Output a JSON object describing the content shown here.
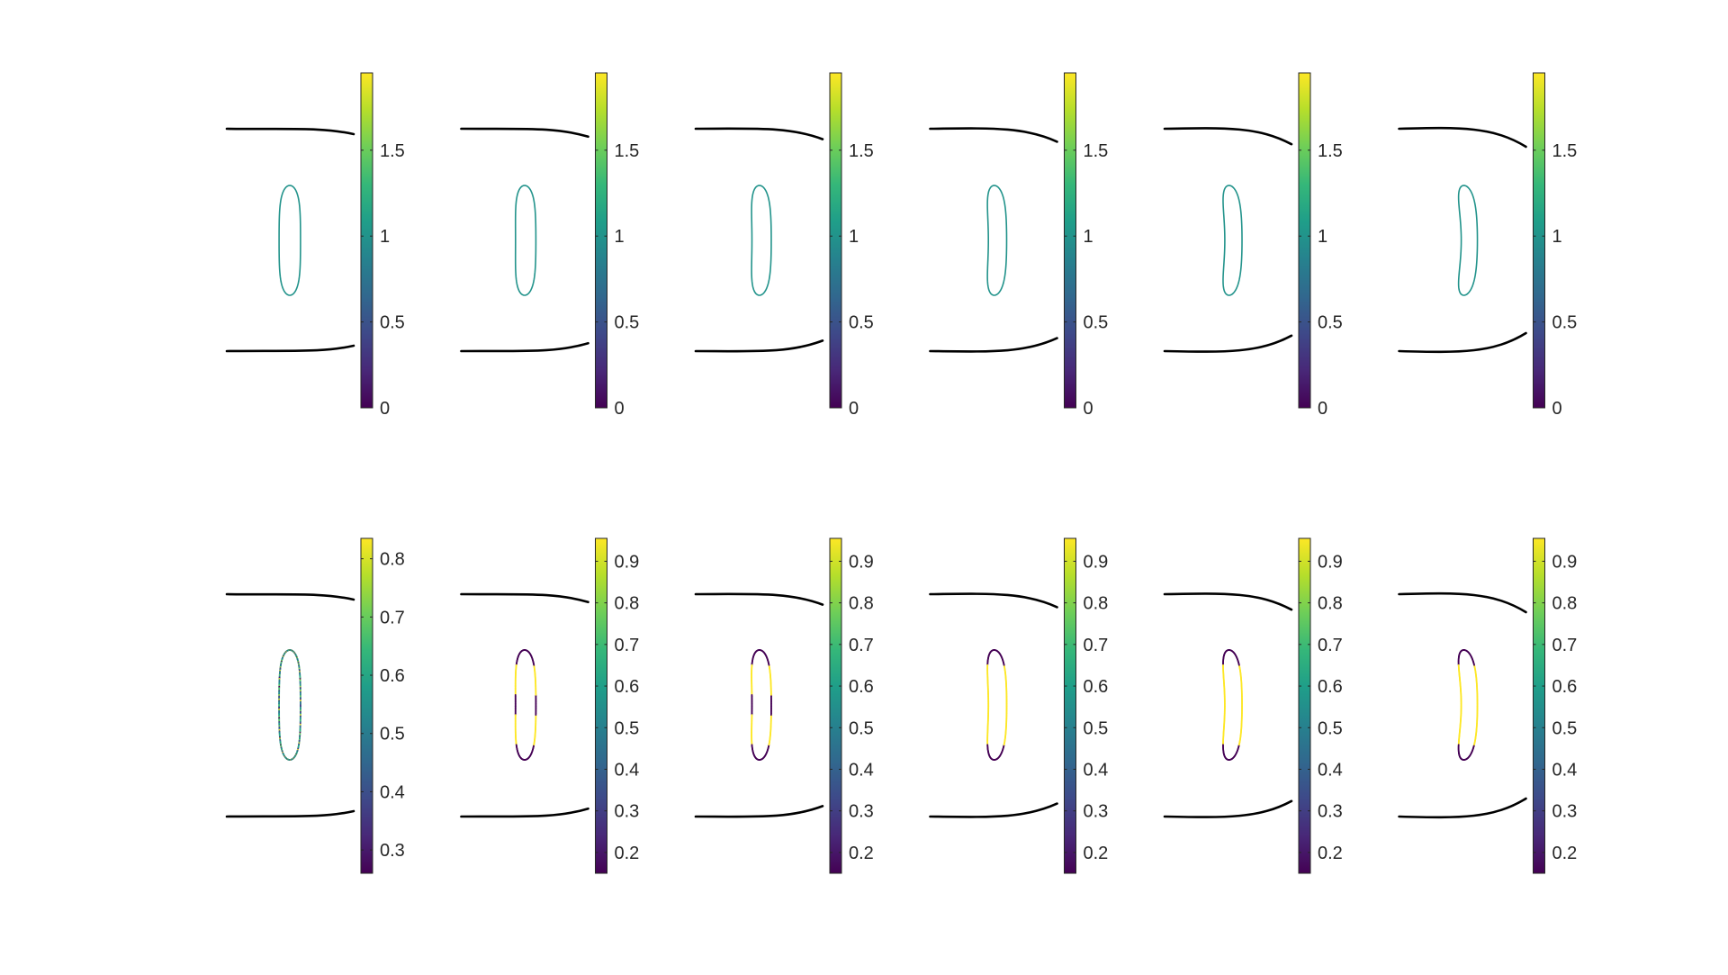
{
  "colors": {
    "background": "#ffffff",
    "walls": "#000000",
    "ticks": "#262626",
    "colormap": "viridis",
    "viridis_stops": [
      "#440154",
      "#482878",
      "#3e4989",
      "#31688e",
      "#26828e",
      "#1f9e89",
      "#35b779",
      "#6ece58",
      "#b5de2b",
      "#fde725"
    ]
  },
  "chart_data": {
    "type": "diagram-grid",
    "rows": [
      {
        "row": 1,
        "colorbar": {
          "cmin": 0,
          "cmax": 1.95,
          "ticks": [
            "0",
            "0.5",
            "1",
            "1.5"
          ],
          "tick_values": [
            0,
            0.5,
            1,
            1.5
          ]
        },
        "panels": [
          {
            "shape_skew": 0.0,
            "wall_tilt": 0.0,
            "surface_field": "uniform",
            "field_value": 1.0
          },
          {
            "shape_skew": 0.2,
            "wall_tilt": 0.2,
            "surface_field": "uniform",
            "field_value": 1.0
          },
          {
            "shape_skew": 0.4,
            "wall_tilt": 0.4,
            "surface_field": "uniform",
            "field_value": 1.0
          },
          {
            "shape_skew": 0.6,
            "wall_tilt": 0.6,
            "surface_field": "uniform",
            "field_value": 1.0
          },
          {
            "shape_skew": 0.8,
            "wall_tilt": 0.8,
            "surface_field": "uniform",
            "field_value": 1.0
          },
          {
            "shape_skew": 1.0,
            "wall_tilt": 1.0,
            "surface_field": "uniform",
            "field_value": 1.0
          }
        ]
      },
      {
        "row": 2,
        "panels": [
          {
            "shape_skew": 0.0,
            "wall_tilt": 0.0,
            "surface_field": "speckled",
            "colorbar": {
              "cmin": 0.26,
              "cmax": 0.835,
              "ticks": [
                "0.3",
                "0.4",
                "0.5",
                "0.6",
                "0.7",
                "0.8"
              ],
              "tick_values": [
                0.3,
                0.4,
                0.5,
                0.6,
                0.7,
                0.8
              ]
            }
          },
          {
            "shape_skew": 0.2,
            "wall_tilt": 0.2,
            "surface_field": "sides",
            "colorbar": {
              "cmin": 0.15,
              "cmax": 0.955,
              "ticks": [
                "0.2",
                "0.3",
                "0.4",
                "0.5",
                "0.6",
                "0.7",
                "0.8",
                "0.9"
              ],
              "tick_values": [
                0.2,
                0.3,
                0.4,
                0.5,
                0.6,
                0.7,
                0.8,
                0.9
              ]
            }
          },
          {
            "shape_skew": 0.4,
            "wall_tilt": 0.4,
            "surface_field": "sides",
            "colorbar": {
              "cmin": 0.15,
              "cmax": 0.955,
              "ticks": [
                "0.2",
                "0.3",
                "0.4",
                "0.5",
                "0.6",
                "0.7",
                "0.8",
                "0.9"
              ],
              "tick_values": [
                0.2,
                0.3,
                0.4,
                0.5,
                0.6,
                0.7,
                0.8,
                0.9
              ]
            }
          },
          {
            "shape_skew": 0.6,
            "wall_tilt": 0.6,
            "surface_field": "sides",
            "colorbar": {
              "cmin": 0.15,
              "cmax": 0.955,
              "ticks": [
                "0.2",
                "0.3",
                "0.4",
                "0.5",
                "0.6",
                "0.7",
                "0.8",
                "0.9"
              ],
              "tick_values": [
                0.2,
                0.3,
                0.4,
                0.5,
                0.6,
                0.7,
                0.8,
                0.9
              ]
            }
          },
          {
            "shape_skew": 0.8,
            "wall_tilt": 0.8,
            "surface_field": "sides",
            "colorbar": {
              "cmin": 0.15,
              "cmax": 0.955,
              "ticks": [
                "0.2",
                "0.3",
                "0.4",
                "0.5",
                "0.6",
                "0.7",
                "0.8",
                "0.9"
              ],
              "tick_values": [
                0.2,
                0.3,
                0.4,
                0.5,
                0.6,
                0.7,
                0.8,
                0.9
              ]
            }
          },
          {
            "shape_skew": 1.0,
            "wall_tilt": 1.0,
            "surface_field": "sides",
            "colorbar": {
              "cmin": 0.15,
              "cmax": 0.955,
              "ticks": [
                "0.2",
                "0.3",
                "0.4",
                "0.5",
                "0.6",
                "0.7",
                "0.8",
                "0.9"
              ],
              "tick_values": [
                0.2,
                0.3,
                0.4,
                0.5,
                0.6,
                0.7,
                0.8,
                0.9
              ]
            }
          }
        ]
      }
    ]
  }
}
